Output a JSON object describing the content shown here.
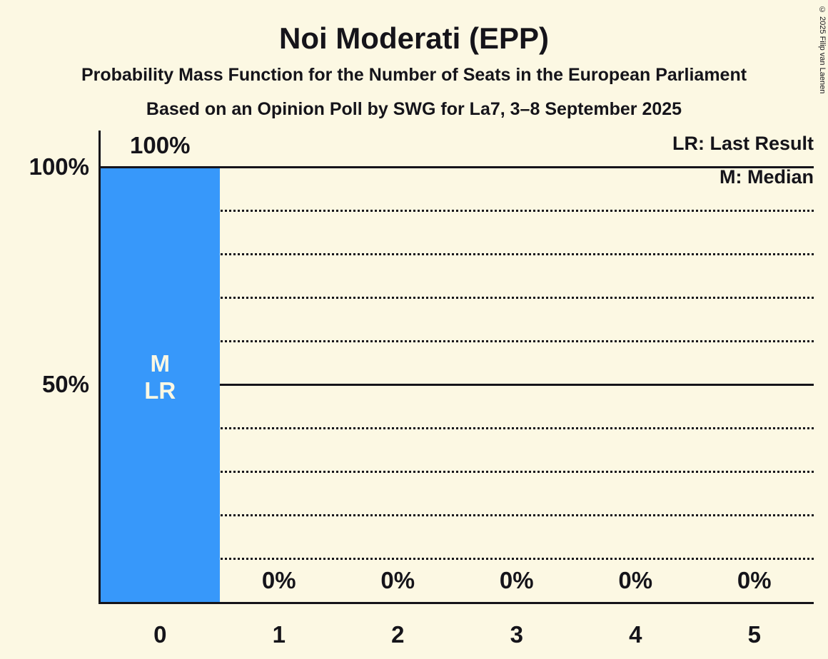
{
  "title": "Noi Moderati (EPP)",
  "subtitle": "Probability Mass Function for the Number of Seats in the European Parliament",
  "poll_line": "Based on an Opinion Poll by SWG for La7, 3–8 September 2025",
  "copyright": "© 2025 Filip van Laenen",
  "legend": {
    "last_result": "LR: Last Result",
    "median": "M: Median"
  },
  "colors": {
    "background": "#FCF8E3",
    "bar": "#3798FA",
    "text": "#15141A",
    "bar_annotation_text": "#FCF8E3"
  },
  "chart_data": {
    "type": "bar",
    "title": "Noi Moderati (EPP)",
    "categories": [
      "0",
      "1",
      "2",
      "3",
      "4",
      "5"
    ],
    "values": [
      100,
      0,
      0,
      0,
      0,
      0
    ],
    "value_labels": [
      "100%",
      "0%",
      "0%",
      "0%",
      "0%",
      "0%"
    ],
    "bar_annotations": [
      [
        "M",
        "LR"
      ],
      [],
      [],
      [],
      [],
      []
    ],
    "y_ticks": [
      {
        "label": "100%",
        "value": 100
      },
      {
        "label": "50%",
        "value": 50
      }
    ],
    "ylim": [
      0,
      100
    ],
    "solid_gridlines": [
      100,
      50
    ],
    "dotted_gridlines": [
      90,
      80,
      70,
      60,
      40,
      30,
      20,
      10
    ],
    "grid": "horizontal",
    "legend_position": "top-right"
  }
}
